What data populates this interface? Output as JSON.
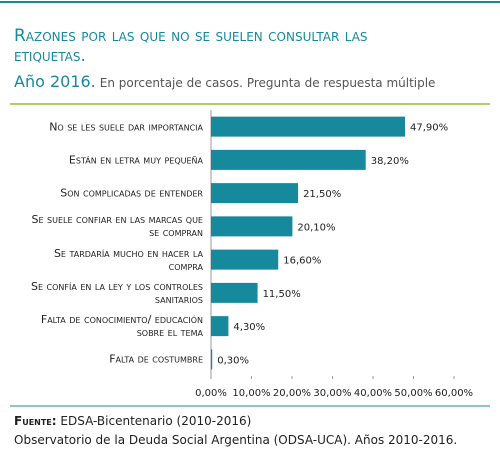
{
  "chart_data": {
    "type": "hbar",
    "title": "Razones por las que no se suelen consultar las etiquetas.",
    "subtitle_year": "Año 2016.",
    "subtitle": "En porcentaje de casos. Pregunta de respuesta múltiple",
    "categories": [
      "No se les suele dar importancia",
      "Están en letra muy pequeña",
      "Son complicadas de entender",
      "Se suele confiar en las marcas que se compran",
      "Se tardaría mucho en hacer la compra",
      "Se confía en la ley y los controles sanitarios",
      "Falta de conocimiento/ educación sobre el tema",
      "Falta de costumbre"
    ],
    "values": [
      47.9,
      38.2,
      21.5,
      20.1,
      16.6,
      11.5,
      4.3,
      0.3
    ],
    "value_labels": [
      "47,90%",
      "38,20%",
      "21,50%",
      "20,10%",
      "16,60%",
      "11,50%",
      "4,30%",
      "0,30%"
    ],
    "color": "#17899c",
    "xlim": [
      0,
      60
    ],
    "xticks": [
      {
        "value": 0,
        "label": "0,00%"
      },
      {
        "value": 10,
        "label": "10,00%"
      },
      {
        "value": 20,
        "label": "20,00%"
      },
      {
        "value": 30,
        "label": "30,00%"
      },
      {
        "value": 40,
        "label": "40,00%"
      },
      {
        "value": 50,
        "label": "50,00%"
      },
      {
        "value": 60,
        "label": "60,00%"
      }
    ],
    "grid": false,
    "source_label": "Fuente:",
    "source": "EDSA-Bicentenario (2010-2016)",
    "note": "Observatorio de la Deuda Social Argentina (ODSA-UCA). Años 2010-2016."
  }
}
